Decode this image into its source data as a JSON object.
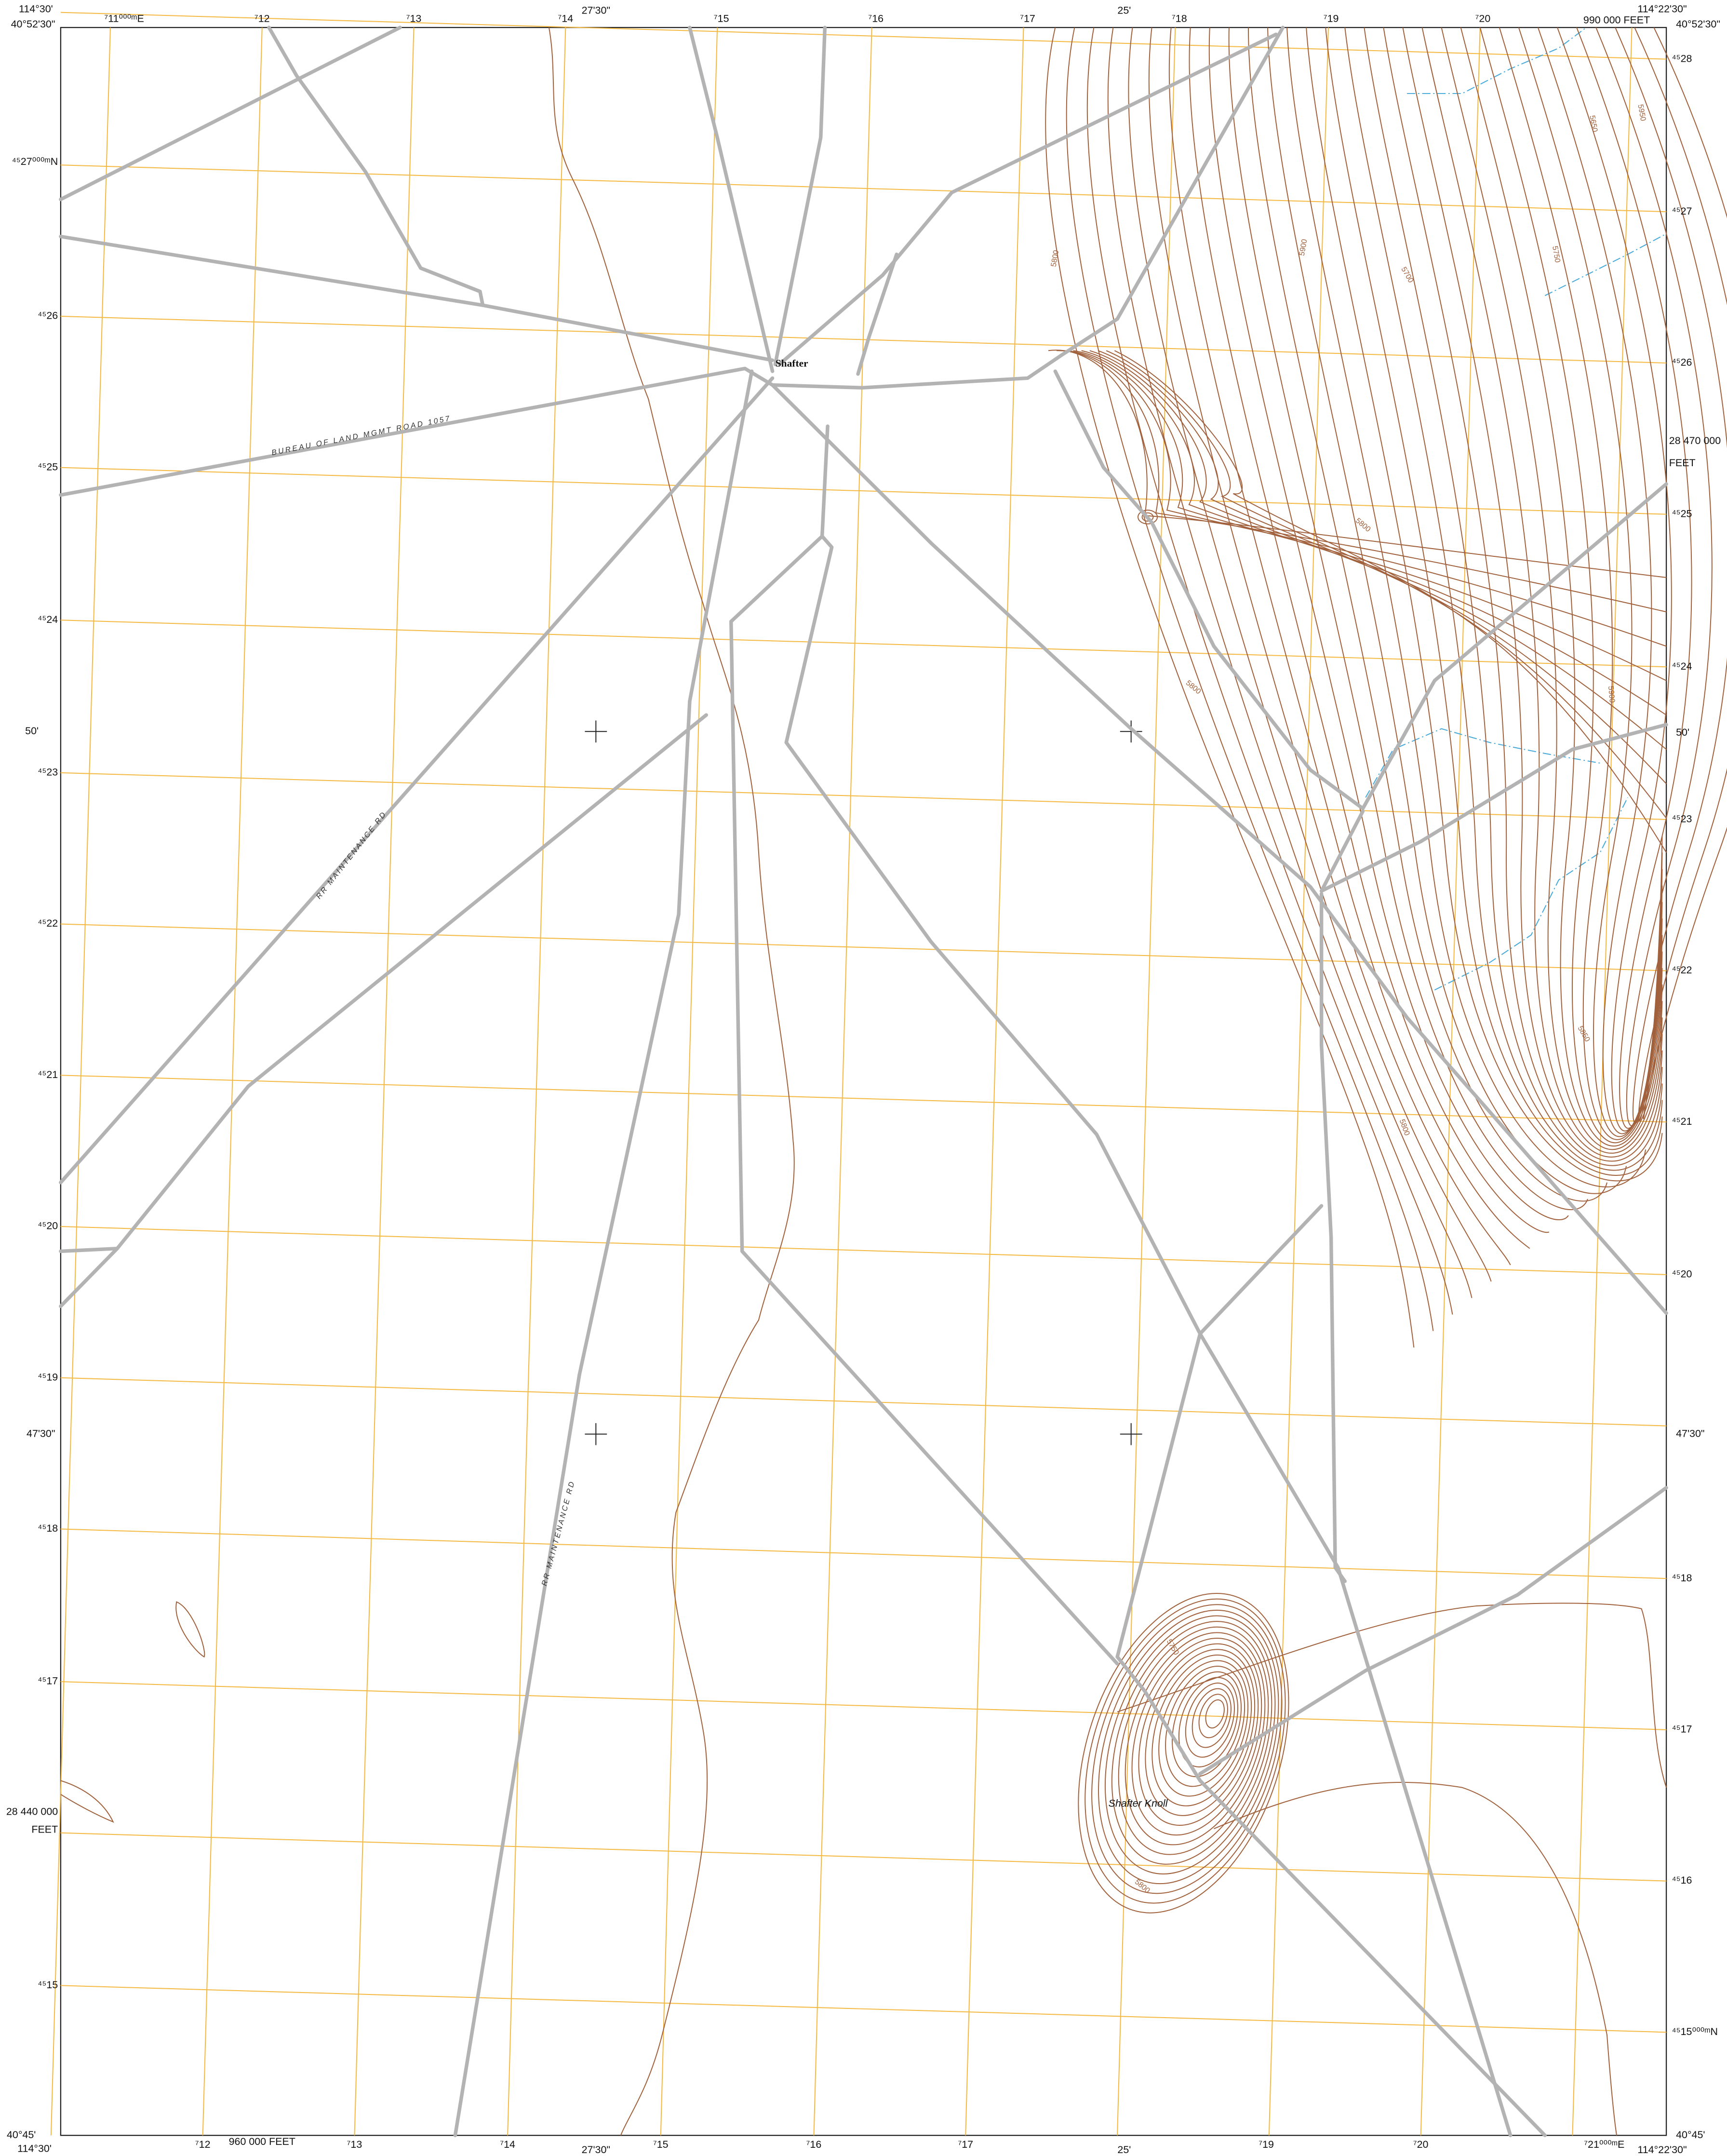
{
  "map": {
    "top": [
      "114°30'",
      "⁷11⁰⁰⁰ᵐE",
      "⁷12",
      "⁷13",
      "⁷14",
      "27'30\"",
      "⁷15",
      "⁷16",
      "⁷17",
      "25'",
      "⁷18",
      "⁷19",
      "⁷20",
      "990 000 FEET",
      "114°22'30\""
    ],
    "bottom": [
      "114°30'",
      "⁷12",
      "960 000 FEET",
      "⁷13",
      "⁷14",
      "27'30\"",
      "⁷15",
      "⁷16",
      "⁷17",
      "25'",
      "⁷19",
      "⁷20",
      "⁷21⁰⁰⁰ᵐE",
      "114°22'30\""
    ],
    "left": [
      "40°52'30\"",
      "⁴⁵27⁰⁰⁰ᵐN",
      "⁴⁵26",
      "⁴⁵25",
      "⁴⁵24",
      "50'",
      "⁴⁵23",
      "⁴⁵22",
      "⁴⁵21",
      "⁴⁵20",
      "⁴⁵19",
      "47'30\"",
      "⁴⁵18",
      "⁴⁵17",
      "28 440 000",
      "FEET",
      "⁴⁵15",
      "40°45'"
    ],
    "right": [
      "40°52'30\"",
      "⁴⁵28",
      "⁴⁵27",
      "⁴⁵26",
      "28 470 000",
      "FEET",
      "⁴⁵25",
      "⁴⁵24",
      "50'",
      "⁴⁵23",
      "⁴⁵22",
      "⁴⁵21",
      "⁴⁵20",
      "47'30\"",
      "⁴⁵18",
      "⁴⁵17",
      "⁴⁵16",
      "⁴⁵15⁰⁰⁰ᵐN",
      "40°45'"
    ],
    "places": [
      "Shafter",
      "Shafter Knoll"
    ],
    "roads": [
      "BUREAU OF LAND MGMT ROAD 1057",
      "RR MAINTENANCE RD",
      "RR MAINTENANCE RD"
    ],
    "contours": [
      "5800",
      "5900",
      "5700",
      "5950",
      "5650",
      "5750",
      "5800",
      "5800",
      "5800",
      "5850",
      "5900",
      "5750",
      "5800"
    ]
  }
}
